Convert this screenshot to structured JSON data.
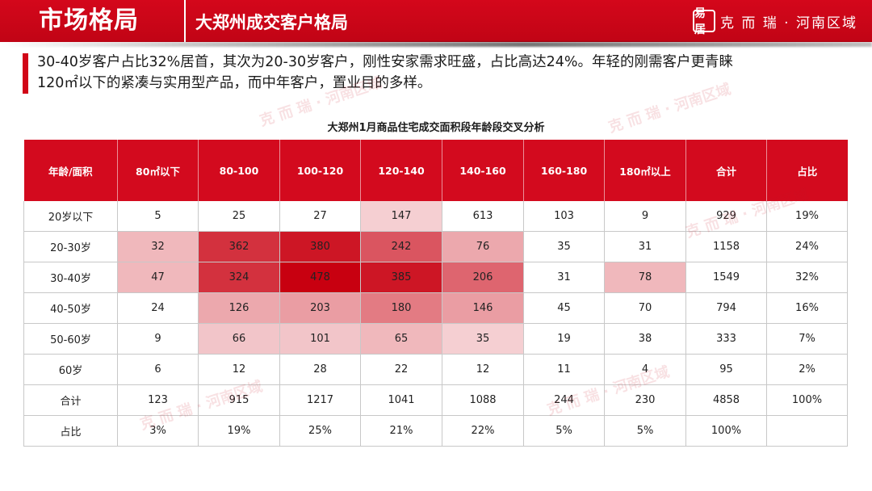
{
  "header": {
    "section_title": "市场格局",
    "sub_title": "大郑州成交客户格局",
    "brand_logo": "易居",
    "brand_text": "克 而 瑞 · 河南区域",
    "accent": "#d30a1e"
  },
  "summary_line1": "30-40岁客户占比32%居首，其次为20-30岁客户，刚性安家需求旺盛，占比高达24%。年轻的刚需客户更青睐",
  "summary_line2": "120㎡以下的紧凑与实用型产品，而中年客户，置业目的多样。",
  "watermark_text": "克 而 瑞 · 河南区域",
  "chart_data": {
    "type": "heatmap",
    "title": "大郑州1月商品住宅成交面积段年龄段交叉分析",
    "corner_label": "年龄/面积",
    "columns": [
      "80㎡以下",
      "80-100",
      "100-120",
      "120-140",
      "140-160",
      "160-180",
      "180㎡以上"
    ],
    "total_label": "合计",
    "share_label": "占比",
    "rows": [
      {
        "label": "20岁以下",
        "values": [
          5,
          25,
          27,
          147,
          613,
          103,
          9
        ],
        "total": "929",
        "share": "19%"
      },
      {
        "label": "20-30岁",
        "values": [
          32,
          362,
          380,
          242,
          76,
          35,
          31
        ],
        "total": "1158",
        "share": "24%"
      },
      {
        "label": "30-40岁",
        "values": [
          47,
          324,
          478,
          385,
          206,
          31,
          78
        ],
        "total": "1549",
        "share": "32%"
      },
      {
        "label": "40-50岁",
        "values": [
          24,
          126,
          203,
          180,
          146,
          45,
          70
        ],
        "total": "794",
        "share": "16%"
      },
      {
        "label": "50-60岁",
        "values": [
          9,
          66,
          101,
          65,
          35,
          19,
          38
        ],
        "total": "333",
        "share": "7%"
      },
      {
        "label": "60岁",
        "values": [
          6,
          12,
          28,
          22,
          12,
          11,
          4
        ],
        "total": "95",
        "share": "2%"
      }
    ],
    "column_totals": {
      "label": "合计",
      "values": [
        "123",
        "915",
        "1217",
        "1041",
        "1088",
        "244",
        "230"
      ],
      "total": "4858",
      "share": "100%"
    },
    "column_shares": {
      "label": "占比",
      "values": [
        "3%",
        "19%",
        "25%",
        "21%",
        "22%",
        "5%",
        "5%"
      ],
      "total": "100%",
      "share": ""
    },
    "heat_levels": [
      [
        0,
        0,
        0,
        0.08,
        0,
        0,
        0
      ],
      [
        0.18,
        0.78,
        0.9,
        0.62,
        0.25,
        0,
        0
      ],
      [
        0.18,
        0.78,
        1.0,
        0.9,
        0.55,
        0,
        0.18
      ],
      [
        0,
        0.25,
        0.3,
        0.45,
        0.3,
        0,
        0
      ],
      [
        0,
        0.12,
        0.12,
        0.18,
        0.08,
        0,
        0
      ],
      [
        0,
        0,
        0,
        0,
        0,
        0,
        0
      ]
    ],
    "heat_color": "#c80010"
  }
}
